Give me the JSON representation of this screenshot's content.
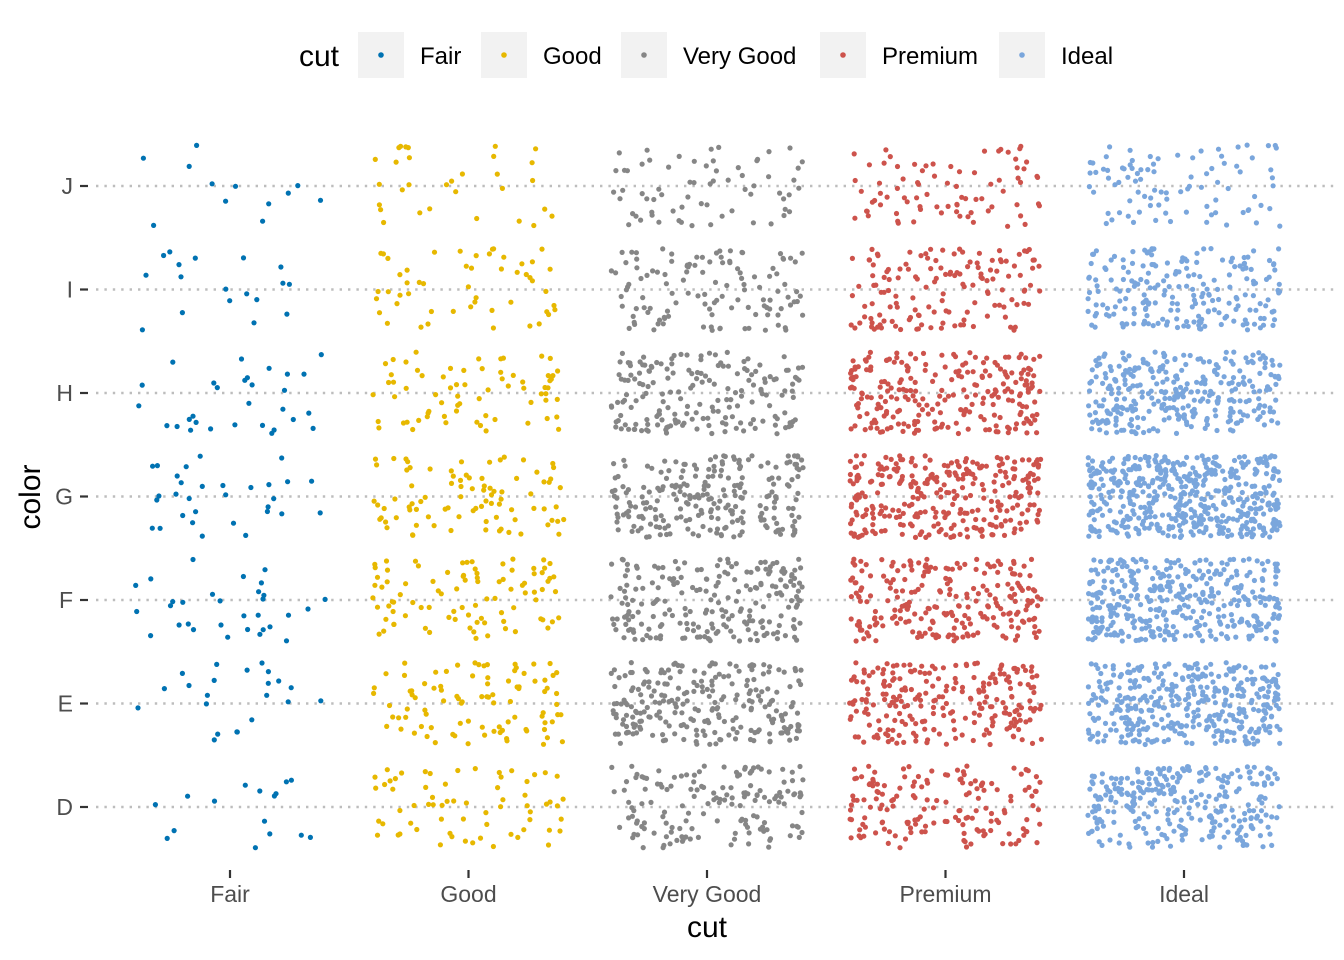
{
  "chart_data": {
    "type": "scatter",
    "jitter": true,
    "xlabel": "cut",
    "ylabel": "color",
    "categories_x": [
      "Fair",
      "Good",
      "Very Good",
      "Premium",
      "Ideal"
    ],
    "categories_y": [
      "D",
      "E",
      "F",
      "G",
      "H",
      "I",
      "J"
    ],
    "legend": {
      "title": "cut",
      "position": "top",
      "entries": [
        "Fair",
        "Good",
        "Very Good",
        "Premium",
        "Ideal"
      ]
    },
    "colors": {
      "Fair": "#0072B2",
      "Good": "#E7B800",
      "Very Good": "#868686",
      "Premium": "#CD534C",
      "Ideal": "#7AA6DC"
    },
    "grid": "major horizontal dotted",
    "counts": {
      "Fair": {
        "D": 163,
        "E": 224,
        "F": 312,
        "G": 314,
        "H": 303,
        "I": 175,
        "J": 119
      },
      "Good": {
        "D": 662,
        "E": 933,
        "F": 909,
        "G": 871,
        "H": 702,
        "I": 522,
        "J": 307
      },
      "Very Good": {
        "D": 1513,
        "E": 2400,
        "F": 2164,
        "G": 2299,
        "H": 1824,
        "I": 1204,
        "J": 678
      },
      "Premium": {
        "D": 1603,
        "E": 2337,
        "F": 2331,
        "G": 2924,
        "H": 2360,
        "I": 1428,
        "J": 808
      },
      "Ideal": {
        "D": 2834,
        "E": 3903,
        "F": 3826,
        "G": 4884,
        "H": 3115,
        "I": 2093,
        "J": 896
      }
    },
    "sample_fraction": 0.1
  }
}
